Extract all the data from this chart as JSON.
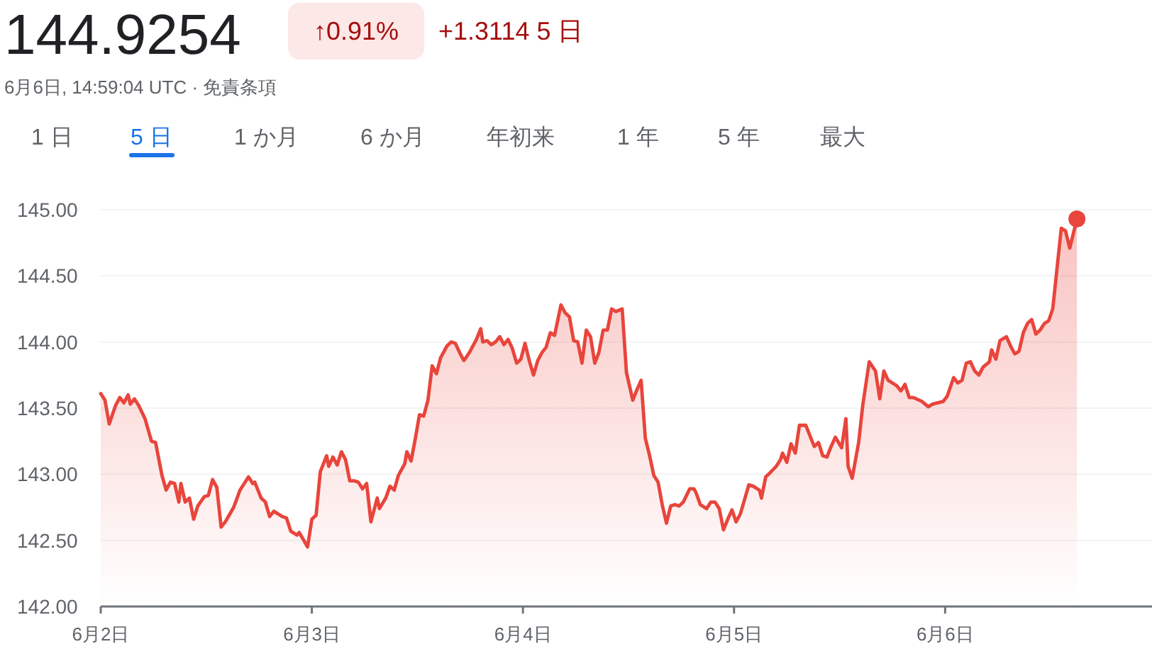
{
  "chart_data": {
    "type": "area",
    "title": "144.9254",
    "subtitle": "6月6日, 14:59:04 UTC · 免責条項",
    "annotations": [
      "↑0.91%",
      "+1.3114 5 日",
      "1 日",
      "5 日",
      "1 か月",
      "6 か月",
      "年初来",
      "1 年",
      "5 年",
      "最大"
    ],
    "xlim": [
      "--06-02T00:00",
      "--06-06T23:31"
    ],
    "ylim": [
      142,
      145
    ],
    "xticks": [
      {
        "value": "--06-02",
        "label": "6月2日"
      },
      {
        "value": "--06-03",
        "label": "6月3日"
      },
      {
        "value": "--06-04",
        "label": "6月4日"
      },
      {
        "value": "--06-05",
        "label": "6月5日"
      },
      {
        "value": "--06-06",
        "label": "6月6日"
      }
    ],
    "yticks": [
      {
        "value": 142,
        "label": "142.00"
      },
      {
        "value": 142.5,
        "label": "142.50"
      },
      {
        "value": 143,
        "label": "143.00"
      },
      {
        "value": 143.5,
        "label": "143.50"
      },
      {
        "value": 144,
        "label": "144.00"
      },
      {
        "value": 144.5,
        "label": "144.50"
      },
      {
        "value": 145,
        "label": "145.00"
      }
    ],
    "grid": "y",
    "series": [
      {
        "color": "#e8453c",
        "x": [
          "--06-02T00:00",
          "--06-02T00:29",
          "--06-02T00:58",
          "--06-02T01:41",
          "--06-02T02:10",
          "--06-02T02:38",
          "--06-02T03:07",
          "--06-02T03:22",
          "--06-02T03:50",
          "--06-02T04:19",
          "--06-02T05:02",
          "--06-02T05:46",
          "--06-02T06:14",
          "--06-02T06:58",
          "--06-02T07:26",
          "--06-02T07:55",
          "--06-02T08:24",
          "--06-02T08:53",
          "--06-02T09:07",
          "--06-02T09:36",
          "--06-02T10:05",
          "--06-02T10:34",
          "--06-02T11:02",
          "--06-02T11:46",
          "--06-02T12:14",
          "--06-02T12:43",
          "--06-02T13:12",
          "--06-02T13:41",
          "--06-02T14:10",
          "--06-02T15:07",
          "--06-02T15:50",
          "--06-02T16:48",
          "--06-02T17:17",
          "--06-02T17:31",
          "--06-02T18:14",
          "--06-02T18:43",
          "--06-02T19:12",
          "--06-02T19:41",
          "--06-02T20:38",
          "--06-02T21:07",
          "--06-02T21:36",
          "--06-02T22:19",
          "--06-02T22:34",
          "--06-02T23:31",
          "--06-03T00:00",
          "--06-03T00:29",
          "--06-03T00:58",
          "--06-03T01:41",
          "--06-03T01:55",
          "--06-03T02:24",
          "--06-03T02:53",
          "--06-03T03:22",
          "--06-03T03:50",
          "--06-03T04:19",
          "--06-03T04:48",
          "--06-03T05:17",
          "--06-03T05:46",
          "--06-03T06:14",
          "--06-03T06:43",
          "--06-03T07:26",
          "--06-03T07:41",
          "--06-03T08:24",
          "--06-03T08:53",
          "--06-03T09:22",
          "--06-03T09:50",
          "--06-03T10:34",
          "--06-03T10:48",
          "--06-03T11:17",
          "--06-03T11:46",
          "--06-03T12:14",
          "--06-03T12:43",
          "--06-03T13:12",
          "--06-03T13:41",
          "--06-03T14:10",
          "--06-03T14:38",
          "--06-03T15:22",
          "--06-03T15:50",
          "--06-03T16:19",
          "--06-03T16:48",
          "--06-03T17:17",
          "--06-03T17:31",
          "--06-03T18:00",
          "--06-03T18:43",
          "--06-03T19:12",
          "--06-03T19:26",
          "--06-03T19:55",
          "--06-03T20:24",
          "--06-03T20:53",
          "--06-03T21:22",
          "--06-03T21:50",
          "--06-03T22:19",
          "--06-03T22:48",
          "--06-03T23:17",
          "--06-03T23:46",
          "--06-04T00:14",
          "--06-04T00:43",
          "--06-04T01:12",
          "--06-04T01:41",
          "--06-04T02:10",
          "--06-04T02:38",
          "--06-04T03:07",
          "--06-04T03:36",
          "--06-04T04:19",
          "--06-04T04:48",
          "--06-04T05:17",
          "--06-04T05:46",
          "--06-04T06:14",
          "--06-04T06:43",
          "--06-04T07:12",
          "--06-04T07:41",
          "--06-04T08:10",
          "--06-04T08:38",
          "--06-04T09:07",
          "--06-04T09:36",
          "--06-04T10:05",
          "--06-04T10:34",
          "--06-04T11:17",
          "--06-04T11:46",
          "--06-04T12:29",
          "--06-04T12:58",
          "--06-04T13:26",
          "--06-04T13:55",
          "--06-04T14:24",
          "--06-04T14:53",
          "--06-04T15:22",
          "--06-04T15:50",
          "--06-04T16:19",
          "--06-04T16:48",
          "--06-04T17:17",
          "--06-04T17:46",
          "--06-04T18:14",
          "--06-04T18:58",
          "--06-04T19:26",
          "--06-04T19:41",
          "--06-04T20:10",
          "--06-04T20:53",
          "--06-04T21:22",
          "--06-04T21:50",
          "--06-04T22:19",
          "--06-04T22:48",
          "--06-04T23:17",
          "--06-04T23:46",
          "--06-05T00:14",
          "--06-05T00:43",
          "--06-05T01:12",
          "--06-05T01:41",
          "--06-05T02:10",
          "--06-05T02:53",
          "--06-05T03:07",
          "--06-05T03:36",
          "--06-05T04:05",
          "--06-05T04:48",
          "--06-05T05:17",
          "--06-05T05:31",
          "--06-05T06:00",
          "--06-05T06:29",
          "--06-05T06:58",
          "--06-05T07:26",
          "--06-05T08:10",
          "--06-05T08:38",
          "--06-05T09:07",
          "--06-05T09:36",
          "--06-05T10:05",
          "--06-05T10:34",
          "--06-05T11:02",
          "--06-05T11:31",
          "--06-05T12:14",
          "--06-05T12:43",
          "--06-05T12:58",
          "--06-05T13:26",
          "--06-05T14:10",
          "--06-05T14:38",
          "--06-05T15:22",
          "--06-05T16:05",
          "--06-05T16:34",
          "--06-05T17:02",
          "--06-05T17:31",
          "--06-05T18:29",
          "--06-05T18:58",
          "--06-05T19:26",
          "--06-05T19:55",
          "--06-05T20:24",
          "--06-05T21:22",
          "--06-05T22:05",
          "--06-05T22:34",
          "--06-05T23:46",
          "--06-06T00:14",
          "--06-06T00:58",
          "--06-06T01:26",
          "--06-06T01:55",
          "--06-06T02:24",
          "--06-06T02:53",
          "--06-06T03:22",
          "--06-06T03:50",
          "--06-06T04:19",
          "--06-06T05:02",
          "--06-06T05:17",
          "--06-06T05:46",
          "--06-06T06:14",
          "--06-06T06:58",
          "--06-06T07:26",
          "--06-06T07:55",
          "--06-06T08:24",
          "--06-06T08:53",
          "--06-06T09:22",
          "--06-06T09:50",
          "--06-06T10:19",
          "--06-06T10:48",
          "--06-06T11:17",
          "--06-06T11:46",
          "--06-06T12:14",
          "--06-06T13:12",
          "--06-06T13:41",
          "--06-06T14:10",
          "--06-06T14:59"
        ],
        "values": [
          143.61,
          143.56,
          143.38,
          143.52,
          143.58,
          143.54,
          143.6,
          143.53,
          143.57,
          143.52,
          143.42,
          143.25,
          143.24,
          142.99,
          142.88,
          142.94,
          142.93,
          142.79,
          142.93,
          142.79,
          142.82,
          142.66,
          142.76,
          142.83,
          142.84,
          142.96,
          142.9,
          142.6,
          142.64,
          142.75,
          142.88,
          142.98,
          142.93,
          142.94,
          142.82,
          142.79,
          142.68,
          142.72,
          142.68,
          142.67,
          142.57,
          142.54,
          142.56,
          142.45,
          142.66,
          142.69,
          143.02,
          143.14,
          143.06,
          143.13,
          143.07,
          143.17,
          143.11,
          142.95,
          142.95,
          142.94,
          142.89,
          142.93,
          142.64,
          142.82,
          142.74,
          142.82,
          142.91,
          142.88,
          142.99,
          143.08,
          143.17,
          143.1,
          143.27,
          143.45,
          143.44,
          143.56,
          143.82,
          143.76,
          143.88,
          143.97,
          144.0,
          143.99,
          143.92,
          143.86,
          143.88,
          143.93,
          144.02,
          144.1,
          144.0,
          144.01,
          143.98,
          144.0,
          144.04,
          143.98,
          144.02,
          143.95,
          143.84,
          143.87,
          143.99,
          143.86,
          143.75,
          143.86,
          143.92,
          143.96,
          144.07,
          144.05,
          144.28,
          144.22,
          144.19,
          144.01,
          144.0,
          143.84,
          144.09,
          144.04,
          143.84,
          143.92,
          144.09,
          144.09,
          144.25,
          144.23,
          144.25,
          143.77,
          143.56,
          143.64,
          143.71,
          143.27,
          143.14,
          142.99,
          142.94,
          142.77,
          142.63,
          142.76,
          142.77,
          142.76,
          142.79,
          142.89,
          142.89,
          142.86,
          142.77,
          142.74,
          142.79,
          142.79,
          142.74,
          142.58,
          142.66,
          142.73,
          142.64,
          142.7,
          142.81,
          142.92,
          142.91,
          142.88,
          142.82,
          142.98,
          143.01,
          143.06,
          143.11,
          143.16,
          143.09,
          143.23,
          143.16,
          143.37,
          143.37,
          143.29,
          143.21,
          143.24,
          143.14,
          143.13,
          143.21,
          143.28,
          143.2,
          143.42,
          143.06,
          142.97,
          143.24,
          143.52,
          143.85,
          143.78,
          143.57,
          143.78,
          143.71,
          143.67,
          143.63,
          143.68,
          143.58,
          143.58,
          143.55,
          143.51,
          143.53,
          143.55,
          143.59,
          143.73,
          143.69,
          143.71,
          143.84,
          143.85,
          143.78,
          143.75,
          143.81,
          143.85,
          143.94,
          143.87,
          144.01,
          144.04,
          143.97,
          143.91,
          143.93,
          144.07,
          144.14,
          144.17,
          144.06,
          144.09,
          144.14,
          144.16,
          144.25,
          144.86,
          144.84,
          144.71,
          144.93
        ]
      },
      {
        "type": "scatter",
        "color": "#e8453c",
        "x": [
          "--06-06T14:59"
        ],
        "values": [
          144.93
        ],
        "marker": "circle"
      }
    ]
  }
}
